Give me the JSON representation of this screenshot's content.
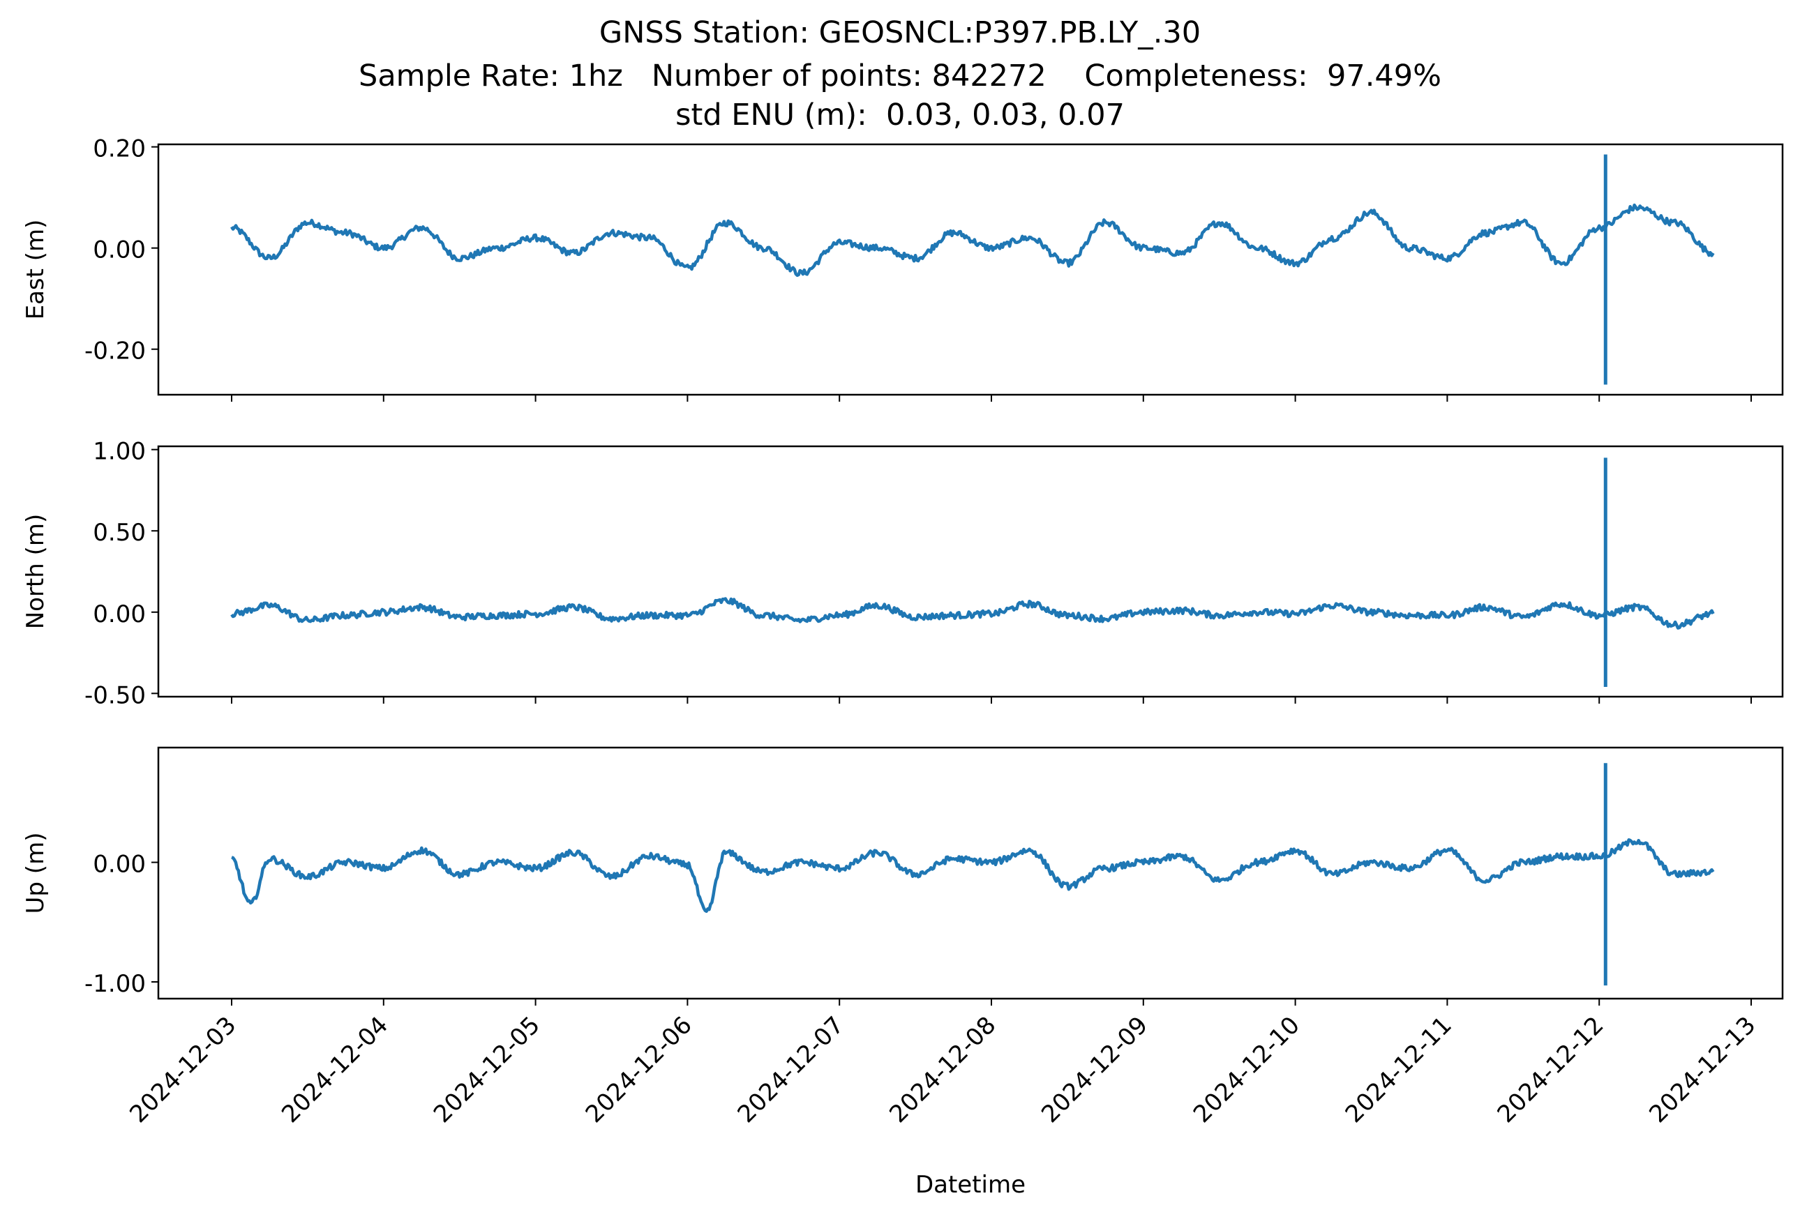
{
  "chart_data": {
    "type": "line",
    "title": "GNSS Station: GEOSNCL:P397.PB.LY_.30",
    "subtitle": "Sample Rate: 1hz   Number of points: 842272    Completeness:  97.49%",
    "subtitle2": "std ENU (m):  0.03, 0.03, 0.07",
    "xlabel": "Datetime",
    "x_ticks": [
      "2024-12-03",
      "2024-12-04",
      "2024-12-05",
      "2024-12-06",
      "2024-12-07",
      "2024-12-08",
      "2024-12-09",
      "2024-12-10",
      "2024-12-11",
      "2024-12-12",
      "2024-12-13"
    ],
    "x_range": [
      "2024-12-03T00:00",
      "2024-12-12T18:00"
    ],
    "line_color": "#1f77b4",
    "grid": false,
    "panels": [
      {
        "ylabel": "East (m)",
        "ylim": [
          -0.29,
          0.205
        ],
        "yticks": [
          0.2,
          0.0,
          -0.2
        ],
        "ytick_labels": [
          "0.20",
          "0.00",
          "-0.20"
        ],
        "spike": {
          "x": "2024-12-12T01:00",
          "min": -0.27,
          "max": 0.185
        },
        "series": {
          "x": [
            "2024-12-03T00:00",
            "2024-12-03T06:00",
            "2024-12-03T12:00",
            "2024-12-03T18:00",
            "2024-12-04T00:00",
            "2024-12-04T06:00",
            "2024-12-04T12:00",
            "2024-12-04T18:00",
            "2024-12-05T00:00",
            "2024-12-05T06:00",
            "2024-12-05T12:00",
            "2024-12-05T18:00",
            "2024-12-06T00:00",
            "2024-12-06T06:00",
            "2024-12-06T12:00",
            "2024-12-06T18:00",
            "2024-12-07T00:00",
            "2024-12-07T06:00",
            "2024-12-07T12:00",
            "2024-12-07T18:00",
            "2024-12-08T00:00",
            "2024-12-08T06:00",
            "2024-12-08T12:00",
            "2024-12-08T18:00",
            "2024-12-09T00:00",
            "2024-12-09T06:00",
            "2024-12-09T12:00",
            "2024-12-09T18:00",
            "2024-12-10T00:00",
            "2024-12-10T06:00",
            "2024-12-10T12:00",
            "2024-12-10T18:00",
            "2024-12-11T00:00",
            "2024-12-11T06:00",
            "2024-12-11T12:00",
            "2024-12-11T18:00",
            "2024-12-12T00:00",
            "2024-12-12T06:00",
            "2024-12-12T12:00",
            "2024-12-12T18:00"
          ],
          "values": [
            0.04,
            -0.02,
            0.05,
            0.03,
            0.0,
            0.04,
            -0.02,
            0.0,
            0.02,
            -0.01,
            0.03,
            0.02,
            -0.04,
            0.05,
            0.0,
            -0.05,
            0.01,
            0.0,
            -0.02,
            0.03,
            0.0,
            0.02,
            -0.03,
            0.05,
            0.0,
            -0.01,
            0.05,
            0.0,
            -0.03,
            0.02,
            0.07,
            0.0,
            -0.02,
            0.03,
            0.05,
            -0.03,
            0.04,
            0.08,
            0.05,
            -0.01
          ]
        }
      },
      {
        "ylabel": "North (m)",
        "ylim": [
          -0.52,
          1.02
        ],
        "yticks": [
          1.0,
          0.5,
          0.0,
          -0.5
        ],
        "ytick_labels": [
          "1.00",
          "0.50",
          "0.00",
          "-0.50"
        ],
        "spike": {
          "x": "2024-12-12T01:00",
          "min": -0.46,
          "max": 0.95
        },
        "series": {
          "x": [
            "2024-12-03T00:00",
            "2024-12-03T06:00",
            "2024-12-03T12:00",
            "2024-12-03T18:00",
            "2024-12-04T00:00",
            "2024-12-04T06:00",
            "2024-12-04T12:00",
            "2024-12-04T18:00",
            "2024-12-05T00:00",
            "2024-12-05T06:00",
            "2024-12-05T12:00",
            "2024-12-05T18:00",
            "2024-12-06T00:00",
            "2024-12-06T06:00",
            "2024-12-06T12:00",
            "2024-12-06T18:00",
            "2024-12-07T00:00",
            "2024-12-07T06:00",
            "2024-12-07T12:00",
            "2024-12-07T18:00",
            "2024-12-08T00:00",
            "2024-12-08T06:00",
            "2024-12-08T12:00",
            "2024-12-08T18:00",
            "2024-12-09T00:00",
            "2024-12-09T06:00",
            "2024-12-09T12:00",
            "2024-12-09T18:00",
            "2024-12-10T00:00",
            "2024-12-10T06:00",
            "2024-12-10T12:00",
            "2024-12-10T18:00",
            "2024-12-11T00:00",
            "2024-12-11T06:00",
            "2024-12-11T12:00",
            "2024-12-11T18:00",
            "2024-12-12T00:00",
            "2024-12-12T06:00",
            "2024-12-12T12:00",
            "2024-12-12T18:00"
          ],
          "values": [
            -0.01,
            0.04,
            -0.05,
            -0.02,
            0.0,
            0.03,
            -0.03,
            -0.02,
            -0.01,
            0.03,
            -0.04,
            -0.02,
            -0.02,
            0.07,
            -0.02,
            -0.05,
            -0.02,
            0.04,
            -0.03,
            -0.02,
            -0.01,
            0.05,
            -0.02,
            -0.04,
            0.0,
            0.01,
            -0.02,
            0.0,
            -0.01,
            0.04,
            0.0,
            -0.02,
            -0.02,
            0.03,
            -0.03,
            0.05,
            -0.02,
            0.03,
            -0.08,
            -0.01
          ]
        }
      },
      {
        "ylabel": "Up (m)",
        "ylim": [
          -1.14,
          0.96
        ],
        "yticks": [
          0.0,
          -1.0
        ],
        "ytick_labels": [
          "0.00",
          "-1.00"
        ],
        "spike": {
          "x": "2024-12-12T01:00",
          "min": -1.03,
          "max": 0.83
        },
        "series": {
          "x": [
            "2024-12-03T00:00",
            "2024-12-03T03:00",
            "2024-12-03T06:00",
            "2024-12-03T12:00",
            "2024-12-03T18:00",
            "2024-12-04T00:00",
            "2024-12-04T06:00",
            "2024-12-04T12:00",
            "2024-12-04T18:00",
            "2024-12-05T00:00",
            "2024-12-05T06:00",
            "2024-12-05T12:00",
            "2024-12-05T18:00",
            "2024-12-06T00:00",
            "2024-12-06T03:00",
            "2024-12-06T06:00",
            "2024-12-06T12:00",
            "2024-12-06T18:00",
            "2024-12-07T00:00",
            "2024-12-07T06:00",
            "2024-12-07T12:00",
            "2024-12-07T18:00",
            "2024-12-08T00:00",
            "2024-12-08T06:00",
            "2024-12-08T12:00",
            "2024-12-08T18:00",
            "2024-12-09T00:00",
            "2024-12-09T06:00",
            "2024-12-09T12:00",
            "2024-12-09T18:00",
            "2024-12-10T00:00",
            "2024-12-10T06:00",
            "2024-12-10T12:00",
            "2024-12-10T18:00",
            "2024-12-11T00:00",
            "2024-12-11T06:00",
            "2024-12-11T12:00",
            "2024-12-11T18:00",
            "2024-12-12T00:00",
            "2024-12-12T06:00",
            "2024-12-12T12:00",
            "2024-12-12T18:00"
          ],
          "values": [
            0.03,
            -0.35,
            0.03,
            -0.12,
            0.0,
            -0.05,
            0.1,
            -0.1,
            0.0,
            -0.05,
            0.08,
            -0.12,
            0.05,
            -0.02,
            -0.42,
            0.08,
            -0.08,
            0.0,
            -0.05,
            0.08,
            -0.1,
            0.03,
            0.0,
            0.1,
            -0.2,
            -0.05,
            0.0,
            0.05,
            -0.15,
            0.0,
            0.1,
            -0.1,
            0.0,
            -0.05,
            0.1,
            -0.15,
            0.0,
            0.05,
            0.05,
            0.18,
            -0.1,
            -0.08
          ]
        }
      }
    ]
  }
}
